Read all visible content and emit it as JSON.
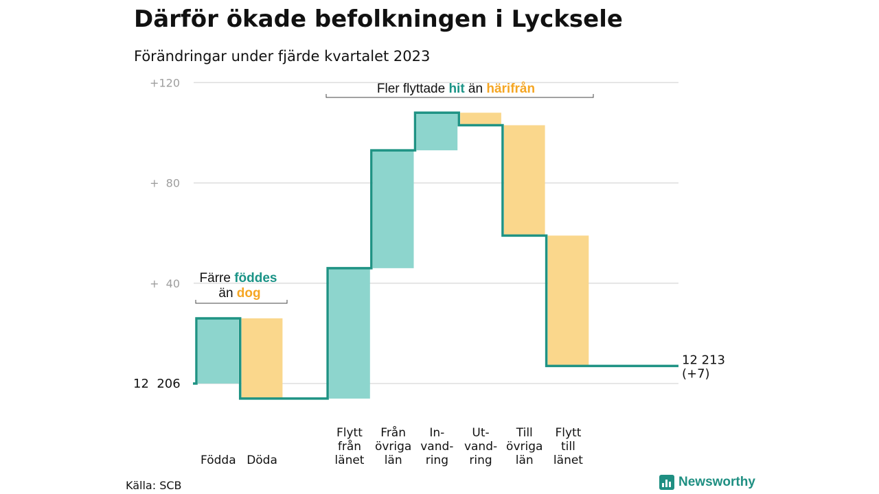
{
  "title": "Därför ökade befolkningen i Lycksele",
  "subtitle": "Förändringar under fjärde kvartalet 2023",
  "source": "Källa: SCB",
  "brand": "Newsworthy",
  "colors": {
    "inflow": "#8dd5cd",
    "outflow": "#fad78c",
    "line": "#1f9384",
    "inflow_text": "#1a9386",
    "outflow_text": "#f5a623",
    "grid": "#dddddd",
    "tick": "#9e9e9e"
  },
  "chart_data": {
    "type": "waterfall",
    "baseline_label": "12  206",
    "end_label": [
      "12 213",
      "(+7)"
    ],
    "y_axis": {
      "range": [
        -6,
        120
      ],
      "ticks": [
        120,
        80,
        40,
        0
      ],
      "tick_labels": [
        "+120",
        "+  80",
        "+  40",
        ""
      ]
    },
    "steps": [
      {
        "label": [
          "Födda"
        ],
        "value": 26,
        "kind": "inflow"
      },
      {
        "label": [
          "Döda"
        ],
        "value": -32,
        "kind": "outflow"
      },
      {
        "label": [],
        "value": 0,
        "kind": "gap"
      },
      {
        "label": [
          "Flytt",
          "från",
          "länet"
        ],
        "value": 52,
        "kind": "inflow"
      },
      {
        "label": [
          "Från",
          "övriga",
          "län"
        ],
        "value": 47,
        "kind": "inflow"
      },
      {
        "label": [
          "In-",
          "vand-",
          "ring"
        ],
        "value": 15,
        "kind": "inflow"
      },
      {
        "label": [
          "Ut-",
          "vand-",
          "ring"
        ],
        "value": -5,
        "kind": "outflow"
      },
      {
        "label": [
          "Till",
          "övriga",
          "län"
        ],
        "value": -44,
        "kind": "outflow"
      },
      {
        "label": [
          "Flytt",
          "till",
          "länet"
        ],
        "value": -52,
        "kind": "outflow"
      }
    ],
    "final_change": 7,
    "annotations": [
      {
        "parts": [
          [
            "Färre ",
            "plain"
          ],
          [
            "föddes",
            "inflow"
          ]
        ],
        "parts2": [
          [
            "än ",
            "plain"
          ],
          [
            "dog",
            "outflow"
          ]
        ]
      },
      {
        "parts": [
          [
            "Fler flyttade ",
            "plain"
          ],
          [
            "hit",
            "inflow"
          ],
          [
            " än ",
            "plain"
          ],
          [
            "härifrån",
            "outflow"
          ]
        ]
      }
    ]
  }
}
